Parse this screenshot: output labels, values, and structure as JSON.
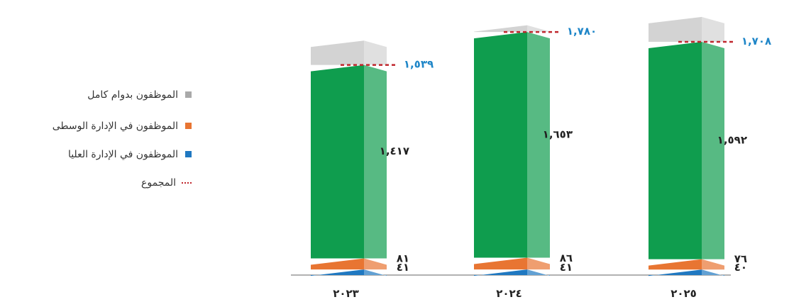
{
  "chart_data": {
    "type": "bar",
    "stacked": true,
    "categories": [
      "٢٠٢٣",
      "٢٠٢٤",
      "٢٠٢٥"
    ],
    "series": [
      {
        "name": "الموظفون في الإدارة العليا",
        "values": [
          41,
          41,
          40
        ],
        "labels": [
          "٤١",
          "٤١",
          "٤٠"
        ],
        "color": "#1f78c1"
      },
      {
        "name": "الموظفون في الإدارة الوسطى",
        "values": [
          81,
          86,
          76
        ],
        "labels": [
          "٨١",
          "٨٦",
          "٧٦"
        ],
        "color": "#e87532"
      },
      {
        "name": "الموظفون بدوام كامل",
        "values": [
          1417,
          1653,
          1592
        ],
        "labels": [
          "١,٤١٧",
          "١,٦٥٣",
          "١,٥٩٢"
        ],
        "color": "#0f9d4e"
      }
    ],
    "gray_series_color": "#d3d3d3",
    "totals": {
      "name": "المجموع",
      "values": [
        1539,
        1780,
        1708
      ],
      "labels": [
        "١,٥٣٩",
        "١,٧٨٠",
        "١,٧٠٨"
      ],
      "color": "#c0272d",
      "label_color": "#1f86c8"
    },
    "ylim": [
      0,
      1800
    ],
    "legend_position": "left",
    "grid": false
  },
  "legend": {
    "items": [
      {
        "label": "الموظفون بدوام كامل",
        "color": "#a9a9a9",
        "style": "square"
      },
      {
        "label": "الموظفون في الإدارة الوسطى",
        "color": "#e87532",
        "style": "square"
      },
      {
        "label": "الموظفون في الإدارة العليا",
        "color": "#1f78c1",
        "style": "square"
      },
      {
        "label": "المجموع",
        "color": "#c0272d",
        "style": "dotted-line"
      }
    ]
  }
}
